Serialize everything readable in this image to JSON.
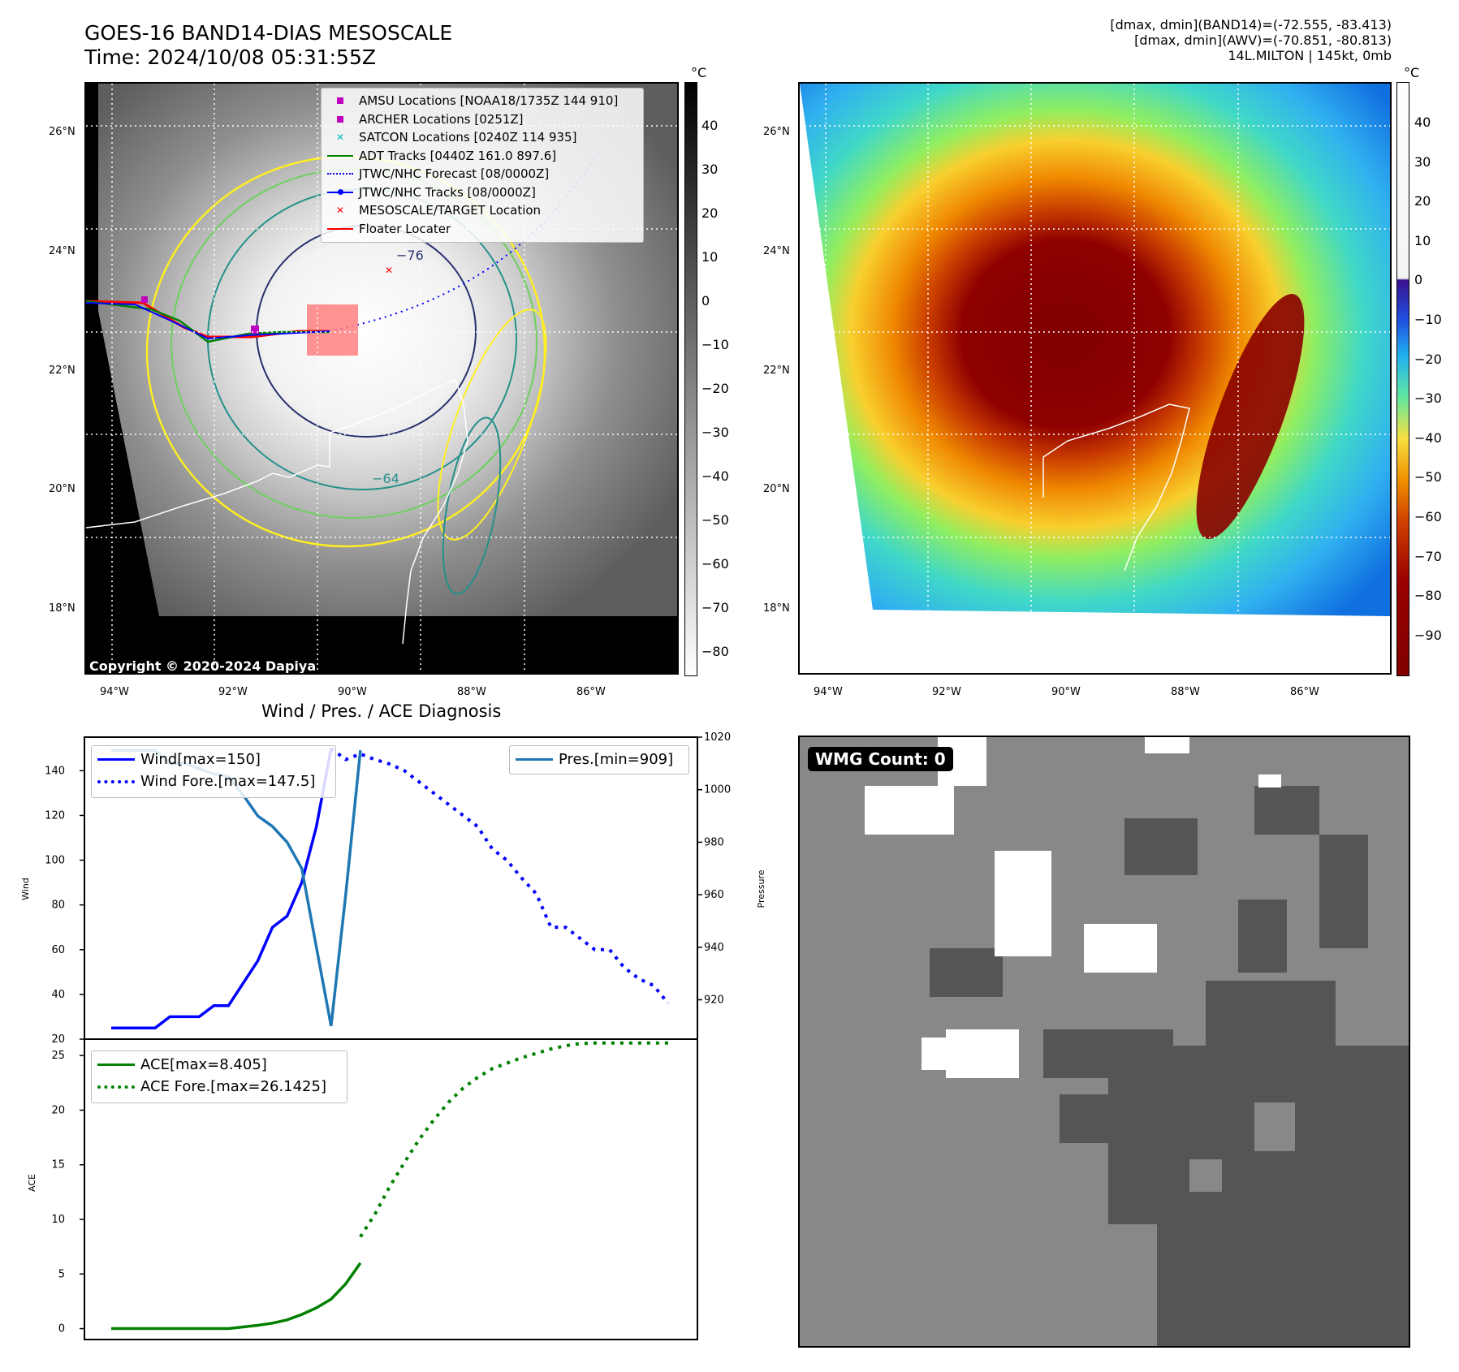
{
  "header": {
    "title_line1": "GOES-16 BAND14-DIAS MESOSCALE",
    "title_line2": "Time: 2024/10/08 05:31:55Z",
    "right_line1": "[dmax, dmin](BAND14)=(-72.555, -83.413)",
    "right_line2": "[dmax, dmin](AWV)=(-70.851, -80.813)",
    "right_line3": "14L.MILTON | 145kt, 0mb"
  },
  "map_axes": {
    "lat_labels": [
      "26°N",
      "24°N",
      "22°N",
      "20°N",
      "18°N"
    ],
    "lon_labels": [
      "94°W",
      "92°W",
      "90°W",
      "88°W",
      "86°W"
    ],
    "unit": "°C"
  },
  "colorbar_left": {
    "ticks": [
      "40",
      "30",
      "20",
      "10",
      "0",
      "−10",
      "−20",
      "−30",
      "−40",
      "−50",
      "−60",
      "−70",
      "−80"
    ]
  },
  "colorbar_right": {
    "ticks": [
      "40",
      "30",
      "20",
      "10",
      "0",
      "−10",
      "−20",
      "−30",
      "−40",
      "−50",
      "−60",
      "−70",
      "−80",
      "−90"
    ]
  },
  "legend": [
    {
      "label": "AMSU Locations [NOAA18/1735Z 144 910]",
      "symbol": "square",
      "color": "#c000c0"
    },
    {
      "label": "ARCHER Locations [0251Z]",
      "symbol": "square",
      "color": "#c000c0"
    },
    {
      "label": "SATCON Locations [0240Z 114 935]",
      "symbol": "x",
      "color": "#00bcbc"
    },
    {
      "label": "ADT Tracks [0440Z 161.0 897.6]",
      "symbol": "line",
      "color": "#008000"
    },
    {
      "label": "JTWC/NHC Forecast [08/0000Z]",
      "symbol": "dotted",
      "color": "#0000ff"
    },
    {
      "label": "JTWC/NHC Tracks [08/0000Z]",
      "symbol": "linedot",
      "color": "#0000ff"
    },
    {
      "label": "MESOSCALE/TARGET Location",
      "symbol": "x",
      "color": "#ff0000"
    },
    {
      "label": "Floater Locater",
      "symbol": "line",
      "color": "#ff0000"
    }
  ],
  "contour_labels": [
    "−76",
    "−64"
  ],
  "copyright": "Copyright © 2020-2024 Dapiya",
  "wmg_label": "WMG Count: 0",
  "chart_data": [
    {
      "type": "line",
      "title": "Wind / Pres. / ACE Diagnosis",
      "ylabel": "Wind",
      "ylabel_right": "Pressure",
      "ylim": [
        20,
        155
      ],
      "ylim_right": [
        905,
        1020
      ],
      "yticks": [
        20,
        40,
        60,
        80,
        100,
        120,
        140
      ],
      "yticks_right": [
        920,
        940,
        960,
        980,
        1000,
        1020
      ],
      "series": [
        {
          "name": "Wind[max=150]",
          "color": "#0000ff",
          "style": "solid",
          "x": [
            0,
            1,
            2,
            3,
            4,
            5,
            6,
            7,
            8,
            9,
            10,
            11,
            12,
            13,
            14,
            15
          ],
          "values": [
            25,
            25,
            25,
            25,
            30,
            30,
            30,
            35,
            35,
            45,
            55,
            70,
            75,
            90,
            115,
            150
          ]
        },
        {
          "name": "Wind Fore.[max=147.5]",
          "color": "#0000ff",
          "style": "dotted",
          "x": [
            15,
            16,
            17,
            18,
            19,
            20,
            21,
            22,
            23,
            24,
            25,
            26,
            27,
            28,
            29,
            30,
            31,
            32,
            33,
            34,
            35,
            36,
            37,
            38
          ],
          "values": [
            150,
            145,
            147.5,
            145,
            143,
            140,
            135,
            130,
            125,
            120,
            115,
            105,
            100,
            92,
            85,
            70,
            70,
            65,
            60,
            60,
            52,
            47,
            44,
            36
          ]
        },
        {
          "name": "Pres.[min=909]",
          "color": "#1f77b4",
          "style": "solid",
          "axis": "right",
          "x": [
            0,
            1,
            2,
            3,
            4,
            5,
            6,
            7,
            8,
            9,
            10,
            11,
            12,
            13,
            14,
            15,
            16,
            17
          ],
          "values": [
            1015,
            1015,
            1015,
            1015,
            1010,
            1010,
            1008,
            1006,
            1005,
            998,
            990,
            986,
            980,
            970,
            940,
            910,
            960,
            1015
          ]
        }
      ]
    },
    {
      "type": "line",
      "ylabel": "ACE",
      "ylim": [
        -1,
        26.5
      ],
      "yticks": [
        0,
        5,
        10,
        15,
        20,
        25
      ],
      "series": [
        {
          "name": "ACE[max=8.405]",
          "color": "#008000",
          "style": "solid",
          "x": [
            0,
            1,
            2,
            3,
            4,
            5,
            6,
            7,
            8,
            9,
            10,
            11,
            12,
            13,
            14,
            15,
            16,
            17
          ],
          "values": [
            0,
            0,
            0,
            0,
            0,
            0,
            0,
            0,
            0,
            0.15,
            0.3,
            0.5,
            0.8,
            1.3,
            1.9,
            2.7,
            4.1,
            6.0
          ]
        },
        {
          "name": "ACE Fore.[max=26.1425]",
          "color": "#008000",
          "style": "dotted",
          "x": [
            17,
            18,
            19,
            20,
            21,
            22,
            23,
            24,
            25,
            26,
            27,
            28,
            29,
            30,
            31,
            32,
            33,
            34,
            35,
            36,
            37,
            38
          ],
          "values": [
            8.405,
            10.5,
            13.0,
            15.2,
            17.3,
            19.1,
            20.7,
            22.0,
            23.0,
            23.8,
            24.3,
            24.8,
            25.2,
            25.6,
            25.9,
            26.1,
            26.14,
            26.14,
            26.14,
            26.14,
            26.14,
            26.14
          ]
        }
      ]
    }
  ]
}
